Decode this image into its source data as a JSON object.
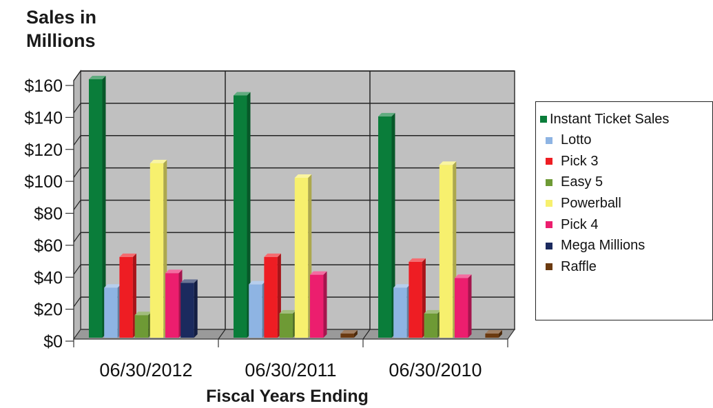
{
  "chart_data": {
    "type": "bar",
    "title_lines": [
      "Sales in",
      "Millions"
    ],
    "xlabel": "Fiscal Years Ending",
    "categories": [
      "06/30/2012",
      "06/30/2011",
      "06/30/2010"
    ],
    "y_ticks": [
      "$0",
      "$20",
      "$40",
      "$60",
      "$80",
      "$100",
      "$120",
      "$140",
      "$160"
    ],
    "ylim": [
      0,
      160
    ],
    "grid": true,
    "legend_position": "right",
    "series": [
      {
        "name": "Instant Ticket Sales",
        "color": "#0a7d3a",
        "values": [
          160,
          150,
          137
        ]
      },
      {
        "name": "Lotto",
        "color": "#8eb4e3",
        "values": [
          31,
          33,
          31
        ]
      },
      {
        "name": "Pick 3",
        "color": "#ee1d23",
        "values": [
          50,
          50,
          47
        ]
      },
      {
        "name": "Easy 5",
        "color": "#6e9a35",
        "values": [
          14,
          15,
          15
        ]
      },
      {
        "name": "Powerball",
        "color": "#f7f06e",
        "values": [
          108,
          99,
          107
        ]
      },
      {
        "name": "Pick 4",
        "color": "#ec1e6e",
        "values": [
          40,
          39,
          37
        ]
      },
      {
        "name": "Mega Millions",
        "color": "#1b2a5e",
        "values": [
          34,
          0,
          0
        ]
      },
      {
        "name": "Raffle",
        "color": "#6b3a10",
        "values": [
          0,
          1,
          1
        ]
      }
    ]
  }
}
